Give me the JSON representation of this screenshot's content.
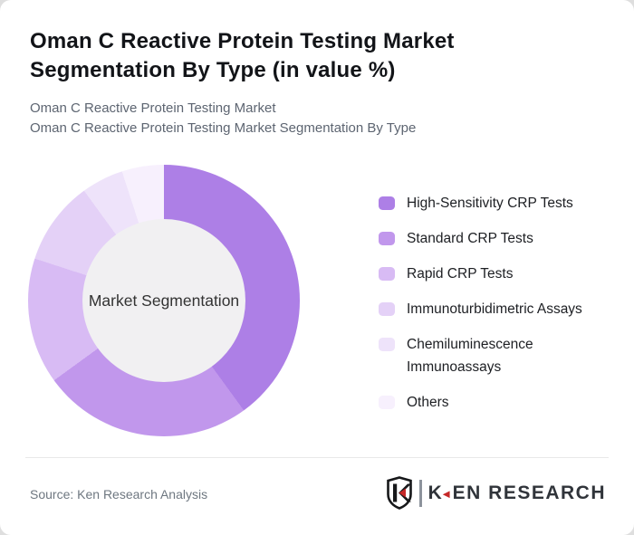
{
  "header": {
    "title": "Oman C Reactive Protein Testing Market Segmentation By Type (in value %)",
    "subtitle_line1": "Oman C Reactive Protein Testing Market",
    "subtitle_line2": "Oman C Reactive Protein Testing Market Segmentation By Type"
  },
  "chart_data": {
    "type": "pie",
    "variant": "donut",
    "center_label": "Market Segmentation",
    "unit": "value %",
    "start_angle_deg": 0,
    "direction": "clockwise",
    "legend_position": "right",
    "series": [
      {
        "name": "High-Sensitivity CRP Tests",
        "value": 40,
        "color": "#ad7fe6"
      },
      {
        "name": "Standard CRP Tests",
        "value": 25,
        "color": "#c197ec"
      },
      {
        "name": "Rapid CRP Tests",
        "value": 15,
        "color": "#d8bbf4"
      },
      {
        "name": "Immunoturbidimetric Assays",
        "value": 10,
        "color": "#e4d1f7"
      },
      {
        "name": "Chemiluminescence Immunoassays",
        "value": 5,
        "color": "#eee3fa"
      },
      {
        "name": "Others",
        "value": 5,
        "color": "#f7f0fd"
      }
    ]
  },
  "footer": {
    "source": "Source: Ken Research Analysis",
    "logo": {
      "shield_letter": "K",
      "wordmark_k": "K",
      "wordmark_rest": "EN RESEARCH",
      "accent_red": "#c62828",
      "dark": "#30343a"
    }
  }
}
